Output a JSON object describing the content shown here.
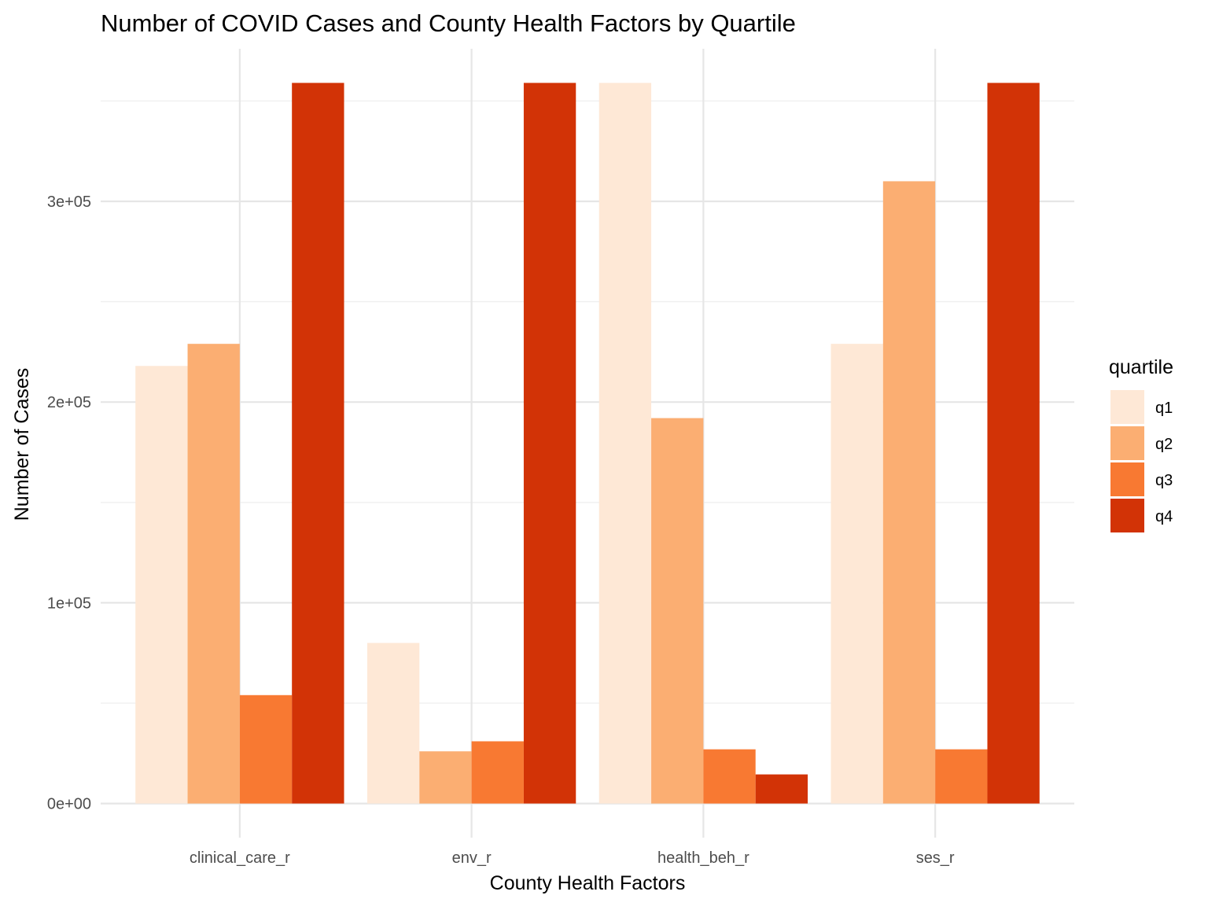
{
  "chart_data": {
    "type": "bar",
    "title": "Number of COVID Cases and County Health Factors by Quartile",
    "xlabel": "County Health Factors",
    "ylabel": "Number of Cases",
    "categories": [
      "clinical_care_r",
      "env_r",
      "health_beh_r",
      "ses_r"
    ],
    "series": [
      {
        "name": "q1",
        "values": [
          218000,
          80000,
          359000,
          229000
        ]
      },
      {
        "name": "q2",
        "values": [
          229000,
          26000,
          192000,
          310000
        ]
      },
      {
        "name": "q3",
        "values": [
          54000,
          31000,
          27000,
          27000
        ]
      },
      {
        "name": "q4",
        "values": [
          359000,
          359000,
          14500,
          359000
        ]
      }
    ],
    "ylim": [
      -17000,
      376000
    ],
    "yticks": [
      0,
      100000,
      200000,
      300000
    ],
    "ytick_labels": [
      "0e+00",
      "1e+05",
      "2e+05",
      "3e+05"
    ],
    "grid": true,
    "legend": {
      "title": "quartile",
      "position": "right"
    },
    "colors": [
      "#fee8d6",
      "#fbae72",
      "#f87932",
      "#d23306"
    ]
  }
}
